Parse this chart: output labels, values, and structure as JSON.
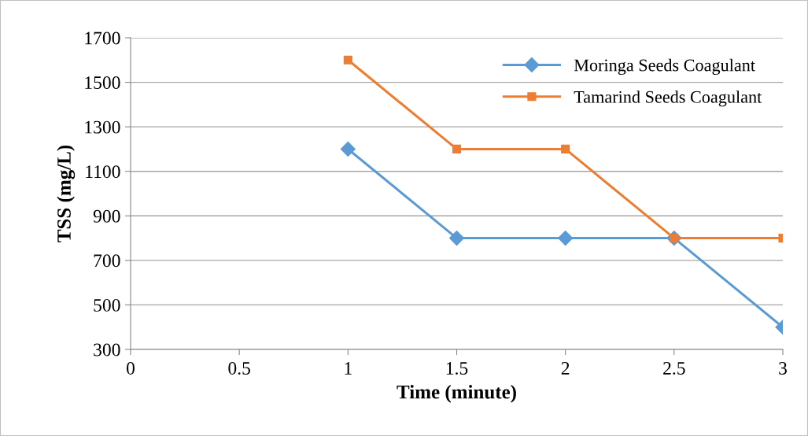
{
  "chart_data": {
    "type": "line",
    "xlabel": "Time (minute)",
    "ylabel": "TSS (mg/L)",
    "xlim": [
      0,
      3
    ],
    "xticks": [
      0,
      0.5,
      1,
      1.5,
      2,
      2.5,
      3
    ],
    "ylim": [
      300,
      1700
    ],
    "yticks": [
      300,
      500,
      700,
      900,
      1100,
      1300,
      1500,
      1700
    ],
    "grid": "y",
    "legend": "top right",
    "line_style": "solid",
    "series": [
      {
        "name": "Moringa Seeds Coagulant",
        "color": "#5b9bd5",
        "marker": "diamond",
        "x": [
          1,
          1.5,
          2,
          2.5,
          3
        ],
        "values": [
          1200,
          800,
          800,
          800,
          400
        ]
      },
      {
        "name": "Tamarind Seeds Coagulant",
        "color": "#ed7d31",
        "marker": "square",
        "x": [
          1,
          1.5,
          2,
          2.5,
          3
        ],
        "values": [
          1600,
          1200,
          1200,
          800,
          800
        ]
      }
    ]
  }
}
